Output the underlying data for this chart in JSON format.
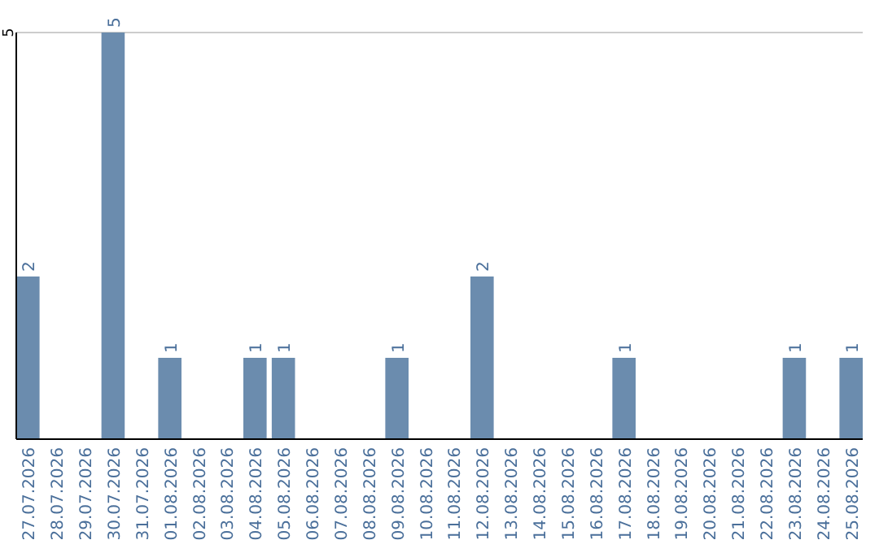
{
  "chart_data": {
    "type": "bar",
    "categories": [
      "27.07.2026",
      "28.07.2026",
      "29.07.2026",
      "30.07.2026",
      "31.07.2026",
      "01.08.2026",
      "02.08.2026",
      "03.08.2026",
      "04.08.2026",
      "05.08.2026",
      "06.08.2026",
      "07.08.2026",
      "08.08.2026",
      "09.08.2026",
      "10.08.2026",
      "11.08.2026",
      "12.08.2026",
      "13.08.2026",
      "14.08.2026",
      "15.08.2026",
      "16.08.2026",
      "17.08.2026",
      "18.08.2026",
      "19.08.2026",
      "20.08.2026",
      "21.08.2026",
      "22.08.2026",
      "23.08.2026",
      "24.08.2026",
      "25.08.2026"
    ],
    "values": [
      2,
      0,
      0,
      5,
      0,
      1,
      0,
      0,
      1,
      1,
      0,
      0,
      0,
      1,
      0,
      0,
      2,
      0,
      0,
      0,
      0,
      1,
      0,
      0,
      0,
      0,
      0,
      1,
      0,
      1
    ],
    "value_labels": [
      "2",
      null,
      null,
      "5",
      null,
      "1",
      null,
      null,
      "1",
      "1",
      null,
      null,
      null,
      "1",
      null,
      null,
      "2",
      null,
      null,
      null,
      null,
      "1",
      null,
      null,
      null,
      null,
      null,
      "1",
      null,
      "1"
    ],
    "color": "#6b8cae",
    "ylim": [
      0,
      5
    ],
    "yticks": [
      5
    ],
    "ref_lines": [
      {
        "axis": "y",
        "value": 5,
        "color": "#cccccc"
      }
    ]
  }
}
